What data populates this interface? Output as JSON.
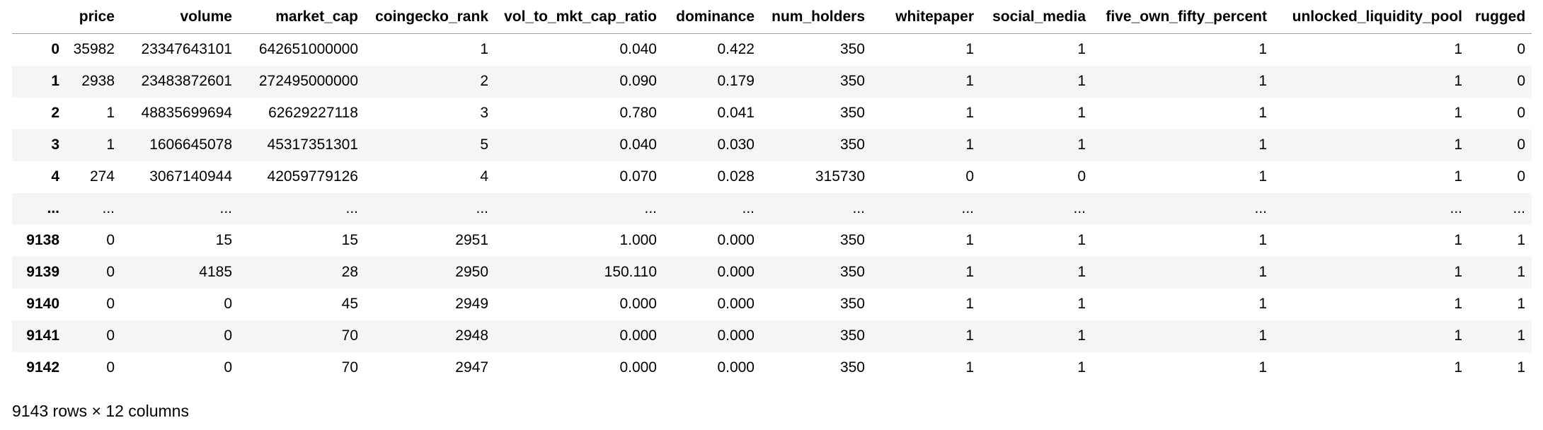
{
  "table": {
    "index_header": "",
    "columns": [
      "price",
      "volume",
      "market_cap",
      "coingecko_rank",
      "vol_to_mkt_cap_ratio",
      "dominance",
      "num_holders",
      "whitepaper",
      "social_media",
      "five_own_fifty_percent",
      "unlocked_liquidity_pool",
      "rugged"
    ],
    "rows": [
      {
        "index": "0",
        "cells": [
          "35982",
          "23347643101",
          "642651000000",
          "1",
          "0.040",
          "0.422",
          "350",
          "1",
          "1",
          "1",
          "1",
          "0"
        ]
      },
      {
        "index": "1",
        "cells": [
          "2938",
          "23483872601",
          "272495000000",
          "2",
          "0.090",
          "0.179",
          "350",
          "1",
          "1",
          "1",
          "1",
          "0"
        ]
      },
      {
        "index": "2",
        "cells": [
          "1",
          "48835699694",
          "62629227118",
          "3",
          "0.780",
          "0.041",
          "350",
          "1",
          "1",
          "1",
          "1",
          "0"
        ]
      },
      {
        "index": "3",
        "cells": [
          "1",
          "1606645078",
          "45317351301",
          "5",
          "0.040",
          "0.030",
          "350",
          "1",
          "1",
          "1",
          "1",
          "0"
        ]
      },
      {
        "index": "4",
        "cells": [
          "274",
          "3067140944",
          "42059779126",
          "4",
          "0.070",
          "0.028",
          "315730",
          "0",
          "0",
          "1",
          "1",
          "0"
        ]
      },
      {
        "index": "...",
        "cells": [
          "...",
          "...",
          "...",
          "...",
          "...",
          "...",
          "...",
          "...",
          "...",
          "...",
          "...",
          "..."
        ]
      },
      {
        "index": "9138",
        "cells": [
          "0",
          "15",
          "15",
          "2951",
          "1.000",
          "0.000",
          "350",
          "1",
          "1",
          "1",
          "1",
          "1"
        ]
      },
      {
        "index": "9139",
        "cells": [
          "0",
          "4185",
          "28",
          "2950",
          "150.110",
          "0.000",
          "350",
          "1",
          "1",
          "1",
          "1",
          "1"
        ]
      },
      {
        "index": "9140",
        "cells": [
          "0",
          "0",
          "45",
          "2949",
          "0.000",
          "0.000",
          "350",
          "1",
          "1",
          "1",
          "1",
          "1"
        ]
      },
      {
        "index": "9141",
        "cells": [
          "0",
          "0",
          "70",
          "2948",
          "0.000",
          "0.000",
          "350",
          "1",
          "1",
          "1",
          "1",
          "1"
        ]
      },
      {
        "index": "9142",
        "cells": [
          "0",
          "0",
          "70",
          "2947",
          "0.000",
          "0.000",
          "350",
          "1",
          "1",
          "1",
          "1",
          "1"
        ]
      }
    ]
  },
  "footer": {
    "shape_text": "9143 rows × 12 columns"
  }
}
